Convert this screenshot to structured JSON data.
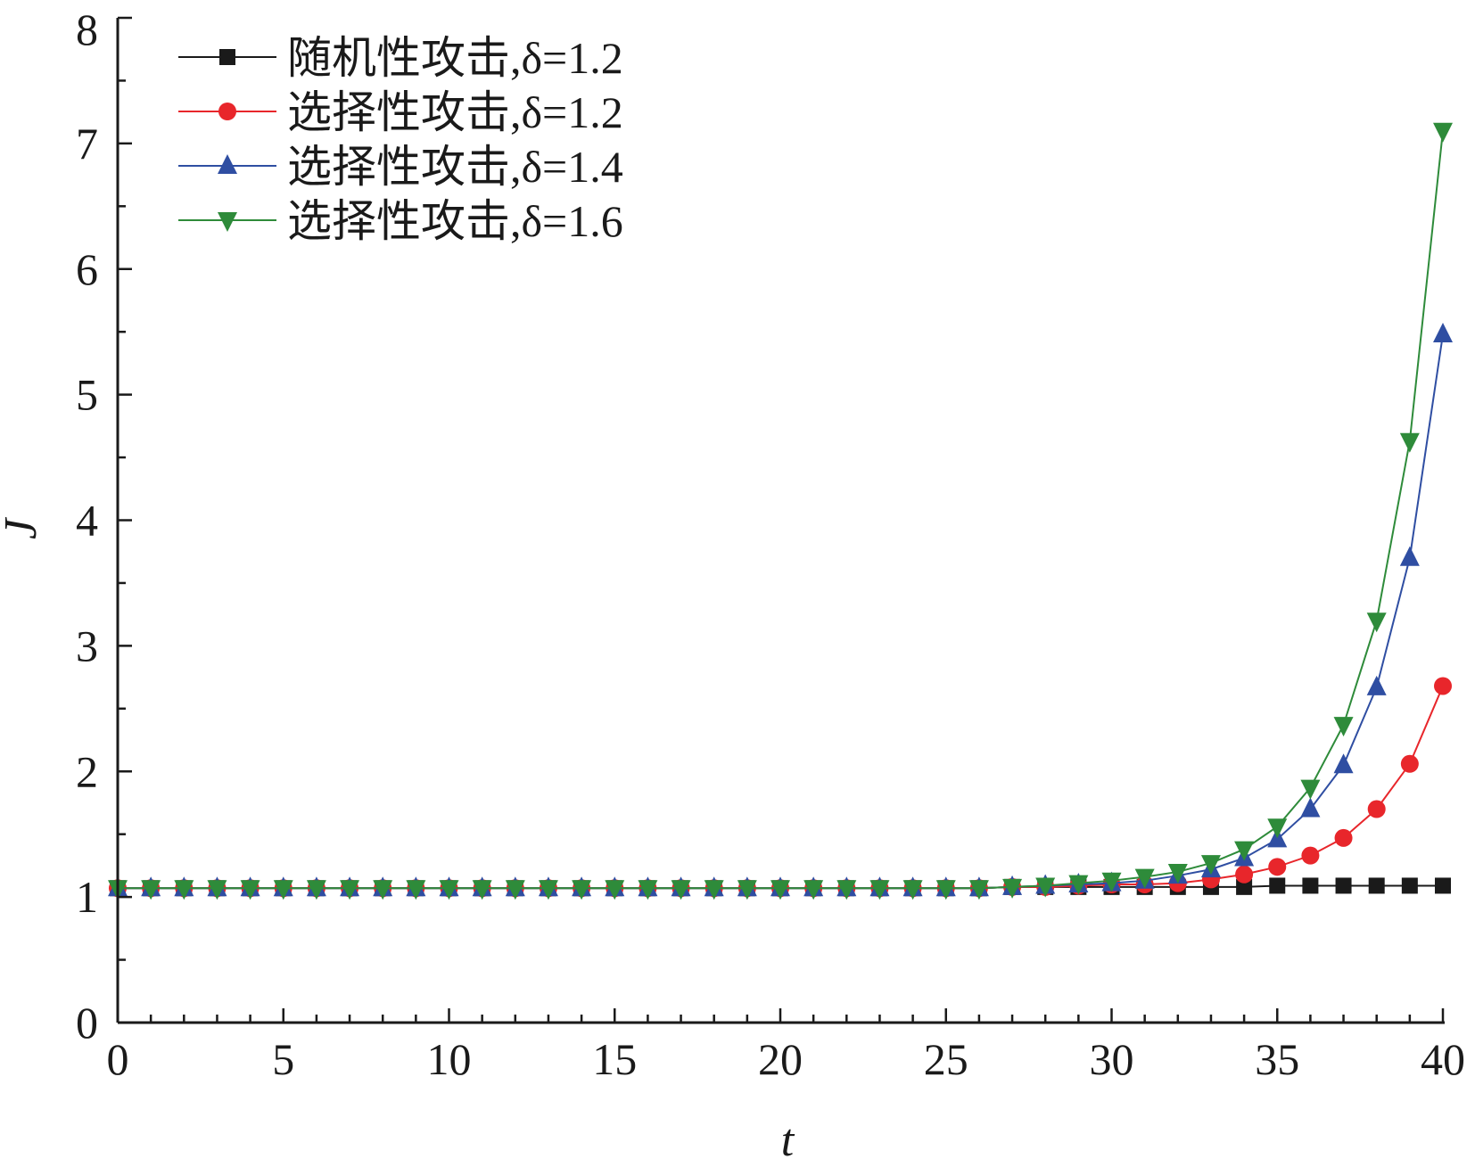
{
  "chart_data": {
    "type": "line",
    "title": "",
    "xlabel": "t",
    "ylabel": "J",
    "xlim": [
      0,
      40
    ],
    "ylim": [
      0,
      8
    ],
    "xticks": [
      0,
      5,
      10,
      15,
      20,
      25,
      30,
      35,
      40
    ],
    "xtick_labels": [
      "0",
      "5",
      "10",
      "15",
      "20",
      "25",
      "30",
      "35",
      "40"
    ],
    "yticks": [
      0,
      1,
      2,
      3,
      4,
      5,
      6,
      7,
      8
    ],
    "ytick_labels": [
      "0",
      "1",
      "2",
      "3",
      "4",
      "5",
      "6",
      "7",
      "8"
    ],
    "grid": false,
    "legend_position": "top-left",
    "x": [
      0,
      1,
      2,
      3,
      4,
      5,
      6,
      7,
      8,
      9,
      10,
      11,
      12,
      13,
      14,
      15,
      16,
      17,
      18,
      19,
      20,
      21,
      22,
      23,
      24,
      25,
      26,
      27,
      28,
      29,
      30,
      31,
      32,
      33,
      34,
      35,
      36,
      37,
      38,
      39,
      40
    ],
    "series": [
      {
        "name": "随机性攻击,δ=1.2",
        "color": "#1a1a1a",
        "marker": "square",
        "values": [
          1.07,
          1.07,
          1.07,
          1.07,
          1.07,
          1.07,
          1.07,
          1.07,
          1.07,
          1.07,
          1.07,
          1.07,
          1.07,
          1.07,
          1.07,
          1.07,
          1.07,
          1.07,
          1.07,
          1.07,
          1.07,
          1.07,
          1.07,
          1.07,
          1.07,
          1.07,
          1.07,
          1.08,
          1.08,
          1.08,
          1.08,
          1.08,
          1.08,
          1.08,
          1.08,
          1.09,
          1.09,
          1.09,
          1.09,
          1.09,
          1.09
        ]
      },
      {
        "name": "选择性攻击,δ=1.2",
        "color": "#e8262b",
        "marker": "circle",
        "values": [
          1.07,
          1.07,
          1.07,
          1.07,
          1.07,
          1.07,
          1.07,
          1.07,
          1.07,
          1.07,
          1.07,
          1.07,
          1.07,
          1.07,
          1.07,
          1.07,
          1.07,
          1.07,
          1.07,
          1.07,
          1.07,
          1.07,
          1.07,
          1.07,
          1.07,
          1.07,
          1.07,
          1.08,
          1.08,
          1.09,
          1.1,
          1.1,
          1.11,
          1.14,
          1.18,
          1.24,
          1.33,
          1.47,
          1.7,
          2.06,
          2.68
        ]
      },
      {
        "name": "选择性攻击,δ=1.4",
        "color": "#2f4ea2",
        "marker": "triangle-up",
        "values": [
          1.07,
          1.07,
          1.07,
          1.07,
          1.07,
          1.07,
          1.07,
          1.07,
          1.07,
          1.07,
          1.07,
          1.07,
          1.07,
          1.07,
          1.07,
          1.07,
          1.07,
          1.07,
          1.07,
          1.07,
          1.07,
          1.07,
          1.07,
          1.07,
          1.07,
          1.07,
          1.07,
          1.08,
          1.09,
          1.1,
          1.11,
          1.13,
          1.17,
          1.22,
          1.31,
          1.46,
          1.7,
          2.05,
          2.67,
          3.7,
          5.48
        ]
      },
      {
        "name": "选择性攻击,δ=1.6",
        "color": "#2e8b3a",
        "marker": "triangle-down",
        "values": [
          1.07,
          1.07,
          1.07,
          1.07,
          1.07,
          1.07,
          1.07,
          1.07,
          1.07,
          1.07,
          1.07,
          1.07,
          1.07,
          1.07,
          1.07,
          1.07,
          1.07,
          1.07,
          1.07,
          1.07,
          1.07,
          1.07,
          1.07,
          1.07,
          1.07,
          1.07,
          1.07,
          1.08,
          1.09,
          1.11,
          1.13,
          1.16,
          1.2,
          1.27,
          1.38,
          1.56,
          1.87,
          2.37,
          3.2,
          4.63,
          7.1
        ]
      }
    ]
  }
}
